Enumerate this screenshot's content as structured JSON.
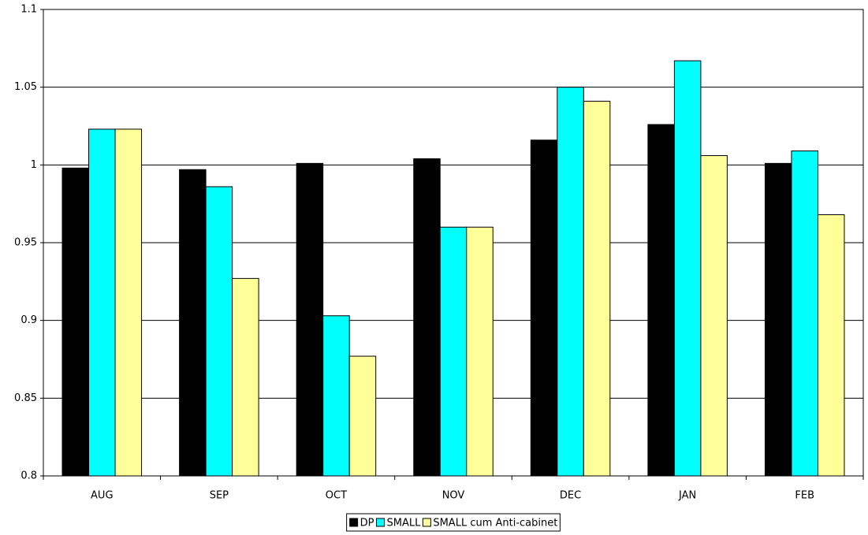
{
  "chart_data": {
    "type": "bar",
    "categories": [
      "AUG",
      "SEP",
      "OCT",
      "NOV",
      "DEC",
      "JAN",
      "FEB"
    ],
    "series": [
      {
        "name": "DP",
        "color": "#000000",
        "values": [
          0.998,
          0.997,
          1.001,
          1.004,
          1.016,
          1.026,
          1.001
        ]
      },
      {
        "name": "SMALL",
        "color": "#00ffff",
        "values": [
          1.023,
          0.986,
          0.903,
          0.96,
          1.05,
          1.067,
          1.009
        ]
      },
      {
        "name": "SMALL cum Anti-cabinet",
        "color": "#ffff99",
        "values": [
          1.023,
          0.927,
          0.877,
          0.96,
          1.041,
          1.006,
          0.968
        ]
      }
    ],
    "ylim": [
      0.8,
      1.1
    ],
    "yticks": [
      0.8,
      0.85,
      0.9,
      0.95,
      1,
      1.05,
      1.1
    ],
    "grid": true,
    "legend": "bottom"
  }
}
